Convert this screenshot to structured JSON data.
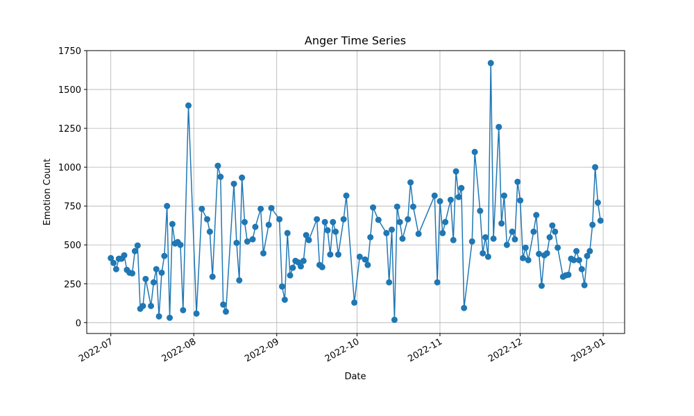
{
  "chart_data": {
    "type": "line",
    "title": "Anger Time Series",
    "x_label": "Date",
    "y_label": "Emotion Count",
    "color": "#1f77b4",
    "grid": true,
    "xlim": [
      "2022-06-22",
      "2023-01-09"
    ],
    "xticks": [
      {
        "value": "2022-07-01",
        "label": "2022-07"
      },
      {
        "value": "2022-08-01",
        "label": "2022-08"
      },
      {
        "value": "2022-09-01",
        "label": "2022-09"
      },
      {
        "value": "2022-10-01",
        "label": "2022-10"
      },
      {
        "value": "2022-11-01",
        "label": "2022-11"
      },
      {
        "value": "2022-12-01",
        "label": "2022-12"
      },
      {
        "value": "2023-01-01",
        "label": "2023-01"
      }
    ],
    "ylim": [
      -70,
      1750
    ],
    "yticks": [
      0,
      250,
      500,
      750,
      1000,
      1250,
      1500,
      1750
    ],
    "x": [
      "2022-07-01",
      "2022-07-02",
      "2022-07-03",
      "2022-07-04",
      "2022-07-05",
      "2022-07-06",
      "2022-07-07",
      "2022-07-08",
      "2022-07-09",
      "2022-07-10",
      "2022-07-11",
      "2022-07-12",
      "2022-07-13",
      "2022-07-14",
      "2022-07-16",
      "2022-07-17",
      "2022-07-18",
      "2022-07-19",
      "2022-07-20",
      "2022-07-21",
      "2022-07-22",
      "2022-07-23",
      "2022-07-24",
      "2022-07-25",
      "2022-07-26",
      "2022-07-27",
      "2022-07-28",
      "2022-07-30",
      "2022-08-02",
      "2022-08-04",
      "2022-08-06",
      "2022-08-07",
      "2022-08-08",
      "2022-08-10",
      "2022-08-11",
      "2022-08-12",
      "2022-08-13",
      "2022-08-16",
      "2022-08-17",
      "2022-08-18",
      "2022-08-19",
      "2022-08-20",
      "2022-08-21",
      "2022-08-23",
      "2022-08-24",
      "2022-08-26",
      "2022-08-27",
      "2022-08-29",
      "2022-08-30",
      "2022-09-02",
      "2022-09-03",
      "2022-09-04",
      "2022-09-05",
      "2022-09-06",
      "2022-09-07",
      "2022-09-08",
      "2022-09-09",
      "2022-09-10",
      "2022-09-11",
      "2022-09-12",
      "2022-09-13",
      "2022-09-16",
      "2022-09-17",
      "2022-09-18",
      "2022-09-19",
      "2022-09-20",
      "2022-09-21",
      "2022-09-22",
      "2022-09-23",
      "2022-09-24",
      "2022-09-26",
      "2022-09-27",
      "2022-09-30",
      "2022-10-02",
      "2022-10-04",
      "2022-10-05",
      "2022-10-06",
      "2022-10-07",
      "2022-10-09",
      "2022-10-12",
      "2022-10-13",
      "2022-10-14",
      "2022-10-15",
      "2022-10-16",
      "2022-10-17",
      "2022-10-18",
      "2022-10-20",
      "2022-10-21",
      "2022-10-22",
      "2022-10-24",
      "2022-10-30",
      "2022-10-31",
      "2022-11-01",
      "2022-11-02",
      "2022-11-03",
      "2022-11-05",
      "2022-11-06",
      "2022-11-07",
      "2022-11-08",
      "2022-11-09",
      "2022-11-10",
      "2022-11-13",
      "2022-11-14",
      "2022-11-16",
      "2022-11-17",
      "2022-11-18",
      "2022-11-19",
      "2022-11-20",
      "2022-11-21",
      "2022-11-23",
      "2022-11-24",
      "2022-11-25",
      "2022-11-26",
      "2022-11-28",
      "2022-11-29",
      "2022-11-30",
      "2022-12-01",
      "2022-12-02",
      "2022-12-03",
      "2022-12-04",
      "2022-12-06",
      "2022-12-07",
      "2022-12-08",
      "2022-12-09",
      "2022-12-10",
      "2022-12-11",
      "2022-12-12",
      "2022-12-13",
      "2022-12-14",
      "2022-12-15",
      "2022-12-17",
      "2022-12-18",
      "2022-12-19",
      "2022-12-20",
      "2022-12-21",
      "2022-12-22",
      "2022-12-23",
      "2022-12-24",
      "2022-12-25",
      "2022-12-26",
      "2022-12-27",
      "2022-12-28",
      "2022-12-29",
      "2022-12-30",
      "2022-12-31"
    ],
    "values": [
      415,
      384,
      344,
      411,
      411,
      433,
      339,
      321,
      317,
      460,
      496,
      89,
      107,
      281,
      107,
      259,
      344,
      40,
      321,
      429,
      750,
      31,
      634,
      509,
      518,
      500,
      80,
      1397,
      58,
      732,
      665,
      585,
      295,
      1009,
      938,
      116,
      71,
      893,
      513,
      272,
      933,
      647,
      522,
      536,
      616,
      732,
      446,
      629,
      737,
      665,
      232,
      147,
      576,
      304,
      353,
      397,
      388,
      362,
      397,
      563,
      531,
      665,
      371,
      357,
      647,
      594,
      438,
      647,
      585,
      438,
      665,
      817,
      129,
      424,
      406,
      371,
      549,
      741,
      661,
      576,
      259,
      598,
      18,
      746,
      647,
      540,
      665,
      902,
      746,
      571,
      817,
      259,
      781,
      576,
      647,
      790,
      531,
      973,
      808,
      866,
      94,
      522,
      1098,
      719,
      446,
      549,
      424,
      1670,
      540,
      1259,
      638,
      817,
      500,
      585,
      536,
      906,
      786,
      415,
      482,
      402,
      585,
      692,
      442,
      237,
      433,
      446,
      549,
      625,
      585,
      482,
      295,
      304,
      308,
      411,
      402,
      460,
      402,
      344,
      241,
      429,
      460,
      629,
      1000,
      772,
      656
    ]
  }
}
